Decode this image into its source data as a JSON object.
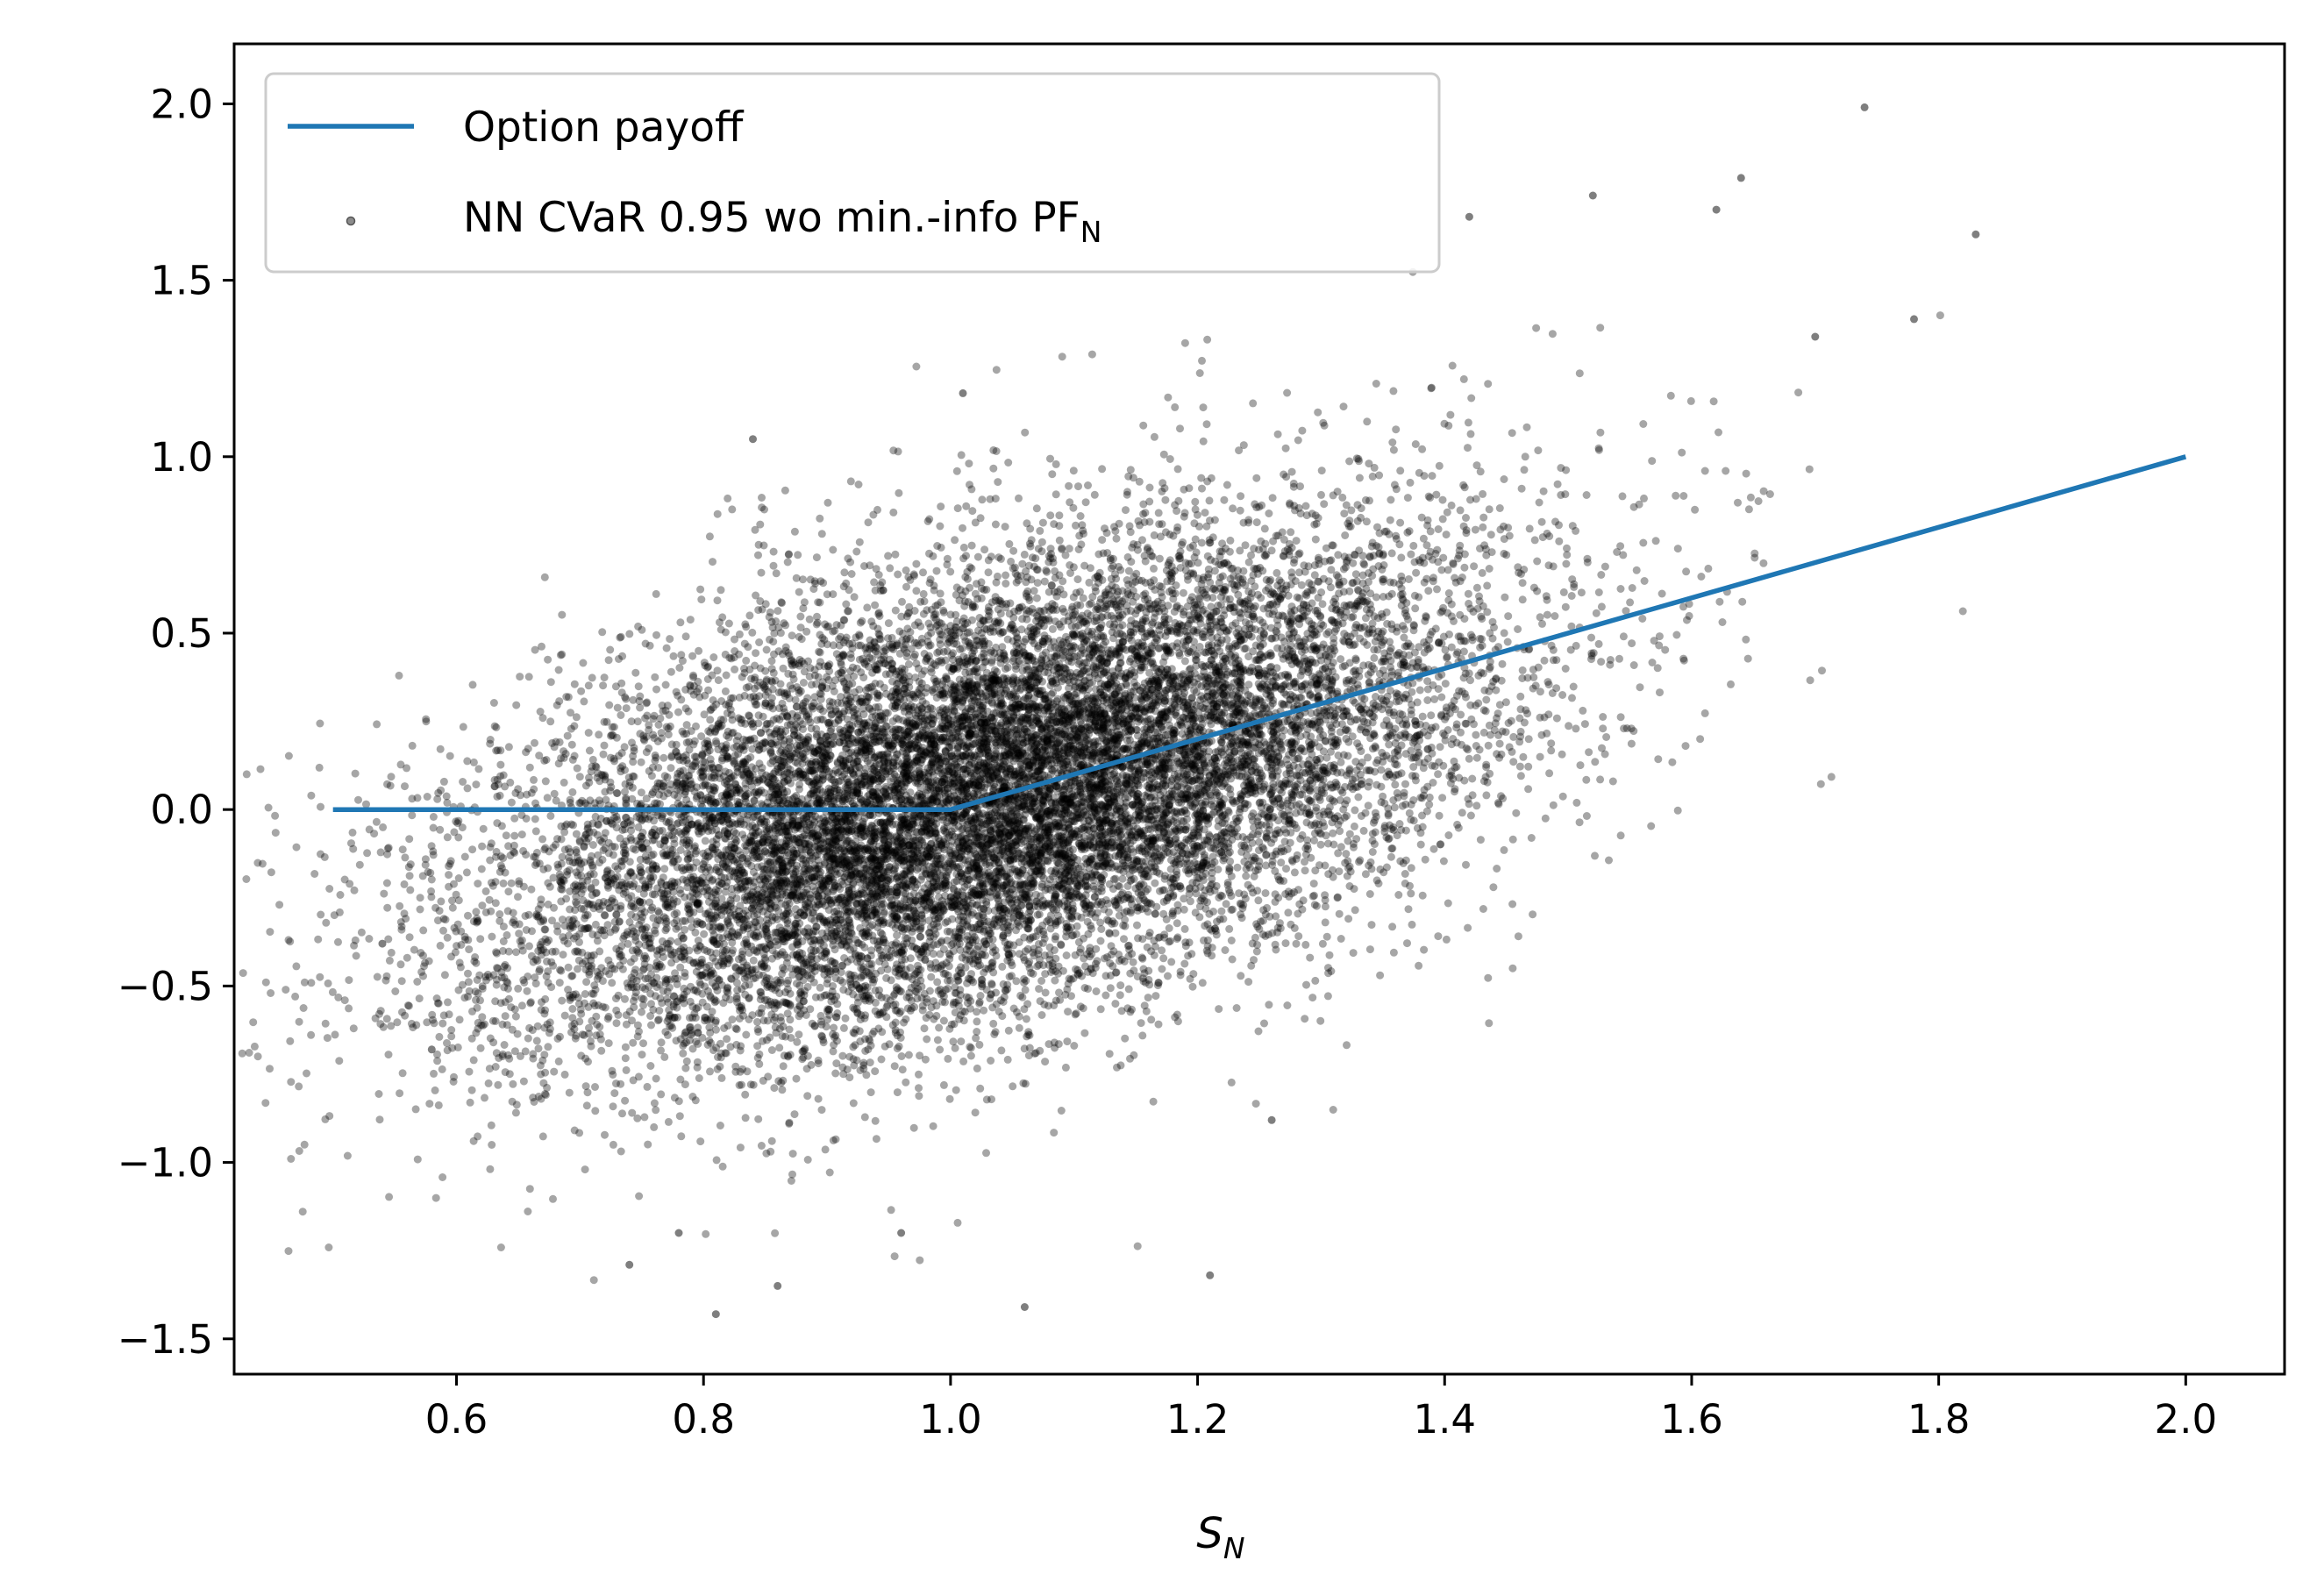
{
  "chart_data": {
    "type": "scatter",
    "title": "",
    "xlabel": "S",
    "xlabel_sub": "N",
    "ylabel": "",
    "xlim": [
      0.42,
      2.08
    ],
    "ylim": [
      -1.6,
      2.17
    ],
    "x_ticks": [
      0.6,
      0.8,
      1.0,
      1.2,
      1.4,
      1.6,
      1.8,
      2.0
    ],
    "x_tick_labels": [
      "0.6",
      "0.8",
      "1.0",
      "1.2",
      "1.4",
      "1.6",
      "1.8",
      "2.0"
    ],
    "y_ticks": [
      -1.5,
      -1.0,
      -0.5,
      0.0,
      0.5,
      1.0,
      1.5,
      2.0
    ],
    "y_tick_labels": [
      "−1.5",
      "−1.0",
      "−0.5",
      "0.0",
      "0.5",
      "1.0",
      "1.5",
      "2.0"
    ],
    "grid": false,
    "legend_position": "top-left",
    "series": [
      {
        "name": "Option payoff",
        "type": "line",
        "color": "#1f77b4",
        "x": [
          0.5,
          1.0,
          2.0
        ],
        "y": [
          0.0,
          0.0,
          1.0
        ]
      },
      {
        "name": "NN CVaR 0.95 wo min.-info PF",
        "name_sub": "N",
        "type": "scatter",
        "color": "#000000",
        "opacity": 0.35,
        "cloud": {
          "mean_x": 1.03,
          "mean_y": 0.05,
          "sd_x": 0.2,
          "sd_y": 0.36,
          "correlation": 0.5,
          "n_points": 16000
        },
        "outliers": [
          [
            1.74,
            1.99
          ],
          [
            1.83,
            1.63
          ],
          [
            1.78,
            1.39
          ],
          [
            1.64,
            1.79
          ],
          [
            1.62,
            1.7
          ],
          [
            1.52,
            1.74
          ],
          [
            1.42,
            1.68
          ],
          [
            1.7,
            1.34
          ],
          [
            0.54,
            -0.38
          ],
          [
            0.58,
            -0.68
          ],
          [
            0.81,
            -1.43
          ],
          [
            1.06,
            -1.41
          ],
          [
            1.21,
            -1.32
          ],
          [
            0.86,
            -1.35
          ],
          [
            0.74,
            -1.29
          ],
          [
            1.26,
            -0.88
          ],
          [
            0.84,
            1.05
          ],
          [
            1.01,
            1.18
          ],
          [
            0.96,
            -1.2
          ],
          [
            0.78,
            -1.2
          ]
        ]
      }
    ]
  }
}
